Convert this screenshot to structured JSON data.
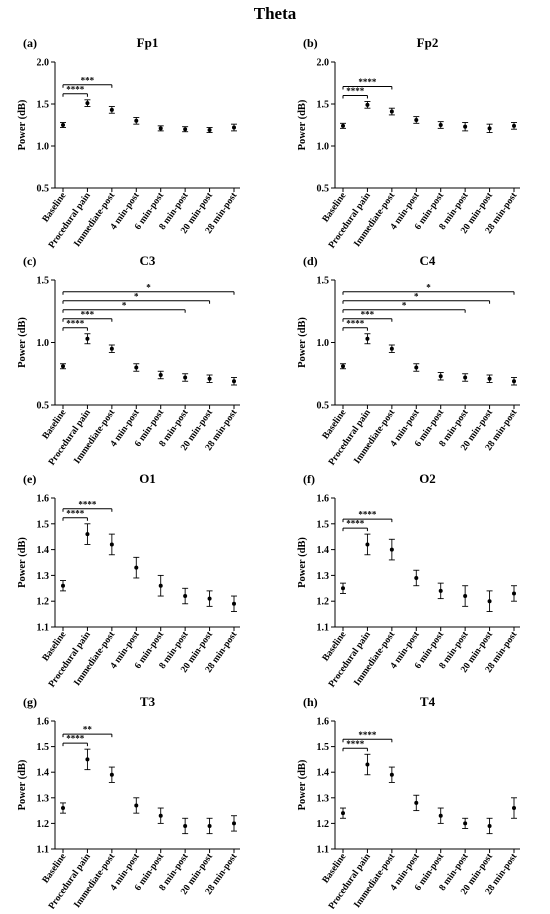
{
  "figure": {
    "title": "Theta"
  },
  "chart_data": [
    {
      "type": "scatter",
      "panel_label": "(a)",
      "title": "Fp1",
      "ylabel": "Power (dB)",
      "categories": [
        "Baseline",
        "Procedural pain",
        "Immediate-post",
        "4 min-post",
        "6 min-post",
        "8 min-post",
        "20 min-post",
        "28 min-post"
      ],
      "values": [
        1.25,
        1.51,
        1.43,
        1.3,
        1.21,
        1.2,
        1.19,
        1.22
      ],
      "errors": [
        0.03,
        0.04,
        0.04,
        0.04,
        0.03,
        0.03,
        0.03,
        0.04
      ],
      "ylim": [
        0.5,
        2.0
      ],
      "yticks": [
        "0.5",
        "1.0",
        "1.5",
        "2.0"
      ],
      "significance": [
        {
          "from": 0,
          "to": 1,
          "label": "****"
        },
        {
          "from": 0,
          "to": 2,
          "label": "***"
        }
      ]
    },
    {
      "type": "scatter",
      "panel_label": "(b)",
      "title": "Fp2",
      "ylabel": "Power (dB)",
      "categories": [
        "Baseline",
        "Procedural pain",
        "Immediate-post",
        "4 min-post",
        "6 min-post",
        "8 min-post",
        "20 min-post",
        "28 min-post"
      ],
      "values": [
        1.24,
        1.49,
        1.41,
        1.31,
        1.25,
        1.23,
        1.21,
        1.24
      ],
      "errors": [
        0.03,
        0.04,
        0.04,
        0.04,
        0.04,
        0.05,
        0.05,
        0.04
      ],
      "ylim": [
        0.5,
        2.0
      ],
      "yticks": [
        "0.5",
        "1.0",
        "1.5",
        "2.0"
      ],
      "significance": [
        {
          "from": 0,
          "to": 1,
          "label": "****"
        },
        {
          "from": 0,
          "to": 2,
          "label": "****"
        }
      ]
    },
    {
      "type": "scatter",
      "panel_label": "(c)",
      "title": "C3",
      "ylabel": "Power (dB)",
      "categories": [
        "Baseline",
        "Procedural pain",
        "Immediate-post",
        "4 min-post",
        "6 min-post",
        "8 min-post",
        "20 min-post",
        "28 min-post"
      ],
      "values": [
        0.81,
        1.03,
        0.95,
        0.8,
        0.74,
        0.72,
        0.71,
        0.69
      ],
      "errors": [
        0.02,
        0.04,
        0.03,
        0.03,
        0.03,
        0.03,
        0.03,
        0.03
      ],
      "ylim": [
        0.5,
        1.5
      ],
      "yticks": [
        "0.5",
        "1.0",
        "1.5"
      ],
      "significance": [
        {
          "from": 0,
          "to": 1,
          "label": "****"
        },
        {
          "from": 0,
          "to": 2,
          "label": "***"
        },
        {
          "from": 0,
          "to": 5,
          "label": "*"
        },
        {
          "from": 0,
          "to": 6,
          "label": "*"
        },
        {
          "from": 0,
          "to": 7,
          "label": "*"
        }
      ]
    },
    {
      "type": "scatter",
      "panel_label": "(d)",
      "title": "C4",
      "ylabel": "Power (dB)",
      "categories": [
        "Baseline",
        "Procedural pain",
        "Immediate-post",
        "4 min-post",
        "6 min-post",
        "8 min-post",
        "20 min-post",
        "28 min-post"
      ],
      "values": [
        0.81,
        1.03,
        0.95,
        0.8,
        0.73,
        0.72,
        0.71,
        0.69
      ],
      "errors": [
        0.02,
        0.04,
        0.03,
        0.03,
        0.03,
        0.03,
        0.03,
        0.03
      ],
      "ylim": [
        0.5,
        1.5
      ],
      "yticks": [
        "0.5",
        "1.0",
        "1.5"
      ],
      "significance": [
        {
          "from": 0,
          "to": 1,
          "label": "****"
        },
        {
          "from": 0,
          "to": 2,
          "label": "***"
        },
        {
          "from": 0,
          "to": 5,
          "label": "*"
        },
        {
          "from": 0,
          "to": 6,
          "label": "*"
        },
        {
          "from": 0,
          "to": 7,
          "label": "*"
        }
      ]
    },
    {
      "type": "scatter",
      "panel_label": "(e)",
      "title": "O1",
      "ylabel": "Power (dB)",
      "categories": [
        "Baseline",
        "Procedural pain",
        "Immediate-post",
        "4 min-post",
        "6 min-post",
        "8 min-post",
        "20 min-post",
        "28 min-post"
      ],
      "values": [
        1.26,
        1.46,
        1.42,
        1.33,
        1.26,
        1.22,
        1.21,
        1.19
      ],
      "errors": [
        0.02,
        0.04,
        0.04,
        0.04,
        0.04,
        0.03,
        0.03,
        0.03
      ],
      "ylim": [
        1.1,
        1.6
      ],
      "yticks": [
        "1.1",
        "1.2",
        "1.3",
        "1.4",
        "1.5",
        "1.6"
      ],
      "significance": [
        {
          "from": 0,
          "to": 1,
          "label": "****"
        },
        {
          "from": 0,
          "to": 2,
          "label": "****"
        }
      ]
    },
    {
      "type": "scatter",
      "panel_label": "(f)",
      "title": "O2",
      "ylabel": "Power (dB)",
      "categories": [
        "Baseline",
        "Procedural pain",
        "Immediate-post",
        "4 min-post",
        "6 min-post",
        "8 min-post",
        "20 min-post",
        "28 min-post"
      ],
      "values": [
        1.25,
        1.42,
        1.4,
        1.29,
        1.24,
        1.22,
        1.2,
        1.23
      ],
      "errors": [
        0.02,
        0.04,
        0.04,
        0.03,
        0.03,
        0.04,
        0.04,
        0.03
      ],
      "ylim": [
        1.1,
        1.6
      ],
      "yticks": [
        "1.1",
        "1.2",
        "1.3",
        "1.4",
        "1.5",
        "1.6"
      ],
      "significance": [
        {
          "from": 0,
          "to": 1,
          "label": "****"
        },
        {
          "from": 0,
          "to": 2,
          "label": "****"
        }
      ]
    },
    {
      "type": "scatter",
      "panel_label": "(g)",
      "title": "T3",
      "ylabel": "Power (dB)",
      "categories": [
        "Baseline",
        "Procedural pain",
        "Immediate-post",
        "4 min-post",
        "6 min-post",
        "8 min-post",
        "20 min-post",
        "28 min-post"
      ],
      "values": [
        1.26,
        1.45,
        1.39,
        1.27,
        1.23,
        1.19,
        1.19,
        1.2
      ],
      "errors": [
        0.02,
        0.04,
        0.03,
        0.03,
        0.03,
        0.03,
        0.03,
        0.03
      ],
      "ylim": [
        1.1,
        1.6
      ],
      "yticks": [
        "1.1",
        "1.2",
        "1.3",
        "1.4",
        "1.5",
        "1.6"
      ],
      "significance": [
        {
          "from": 0,
          "to": 1,
          "label": "****"
        },
        {
          "from": 0,
          "to": 2,
          "label": "**"
        }
      ]
    },
    {
      "type": "scatter",
      "panel_label": "(h)",
      "title": "T4",
      "ylabel": "Power (dB)",
      "categories": [
        "Baseline",
        "Procedural pain",
        "Immediate-post",
        "4 min-post",
        "6 min-post",
        "8 min-post",
        "20 min-post",
        "28 min-post"
      ],
      "values": [
        1.24,
        1.43,
        1.39,
        1.28,
        1.23,
        1.2,
        1.19,
        1.26
      ],
      "errors": [
        0.02,
        0.04,
        0.03,
        0.03,
        0.03,
        0.02,
        0.03,
        0.04
      ],
      "ylim": [
        1.1,
        1.6
      ],
      "yticks": [
        "1.1",
        "1.2",
        "1.3",
        "1.4",
        "1.5",
        "1.6"
      ],
      "significance": [
        {
          "from": 0,
          "to": 1,
          "label": "****"
        },
        {
          "from": 0,
          "to": 2,
          "label": "****"
        }
      ]
    }
  ]
}
